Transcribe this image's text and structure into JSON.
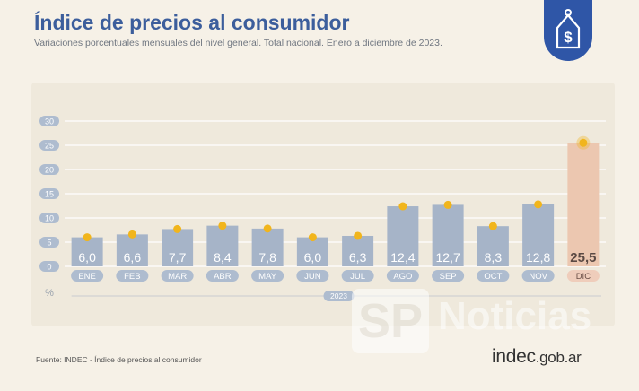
{
  "header": {
    "title": "Índice de precios al consumidor",
    "subtitle": "Variaciones porcentuales mensuales del nivel general. Total nacional. Enero a diciembre de 2023."
  },
  "badge": {
    "icon": "price-tag-dollar-icon"
  },
  "footer": {
    "source": "Fuente: INDEC - Índice de precios al consumidor",
    "brand_main": "indec",
    "brand_domain": ".gob.ar"
  },
  "watermark": {
    "logo": "SP",
    "text": "Noticias"
  },
  "colors": {
    "bar": "#a6b4c8",
    "bar_highlight": "#ecc7b0",
    "dot": "#f1b51c",
    "pill": "#aebccf",
    "pill_highlight": "#efcdbb",
    "grid": "#ffffff",
    "axis_label": "#9aa3ae"
  },
  "chart_data": {
    "type": "bar",
    "categories": [
      "ENE",
      "FEB",
      "MAR",
      "ABR",
      "MAY",
      "JUN",
      "JUL",
      "AGO",
      "SEP",
      "OCT",
      "NOV",
      "DIC"
    ],
    "values": [
      6.0,
      6.6,
      7.7,
      8.4,
      7.8,
      6.0,
      6.3,
      12.4,
      12.7,
      8.3,
      12.8,
      25.5
    ],
    "value_labels": [
      "6,0",
      "6,6",
      "7,7",
      "8,4",
      "7,8",
      "6,0",
      "6,3",
      "12,4",
      "12,7",
      "8,3",
      "12,8",
      "25,5"
    ],
    "highlight_index": 11,
    "y_ticks": [
      "30",
      "25",
      "20",
      "15",
      "10",
      "5",
      "0"
    ],
    "ylim": [
      0,
      30
    ],
    "ylabel": "%",
    "x_group_label": "2023",
    "grid": true
  }
}
